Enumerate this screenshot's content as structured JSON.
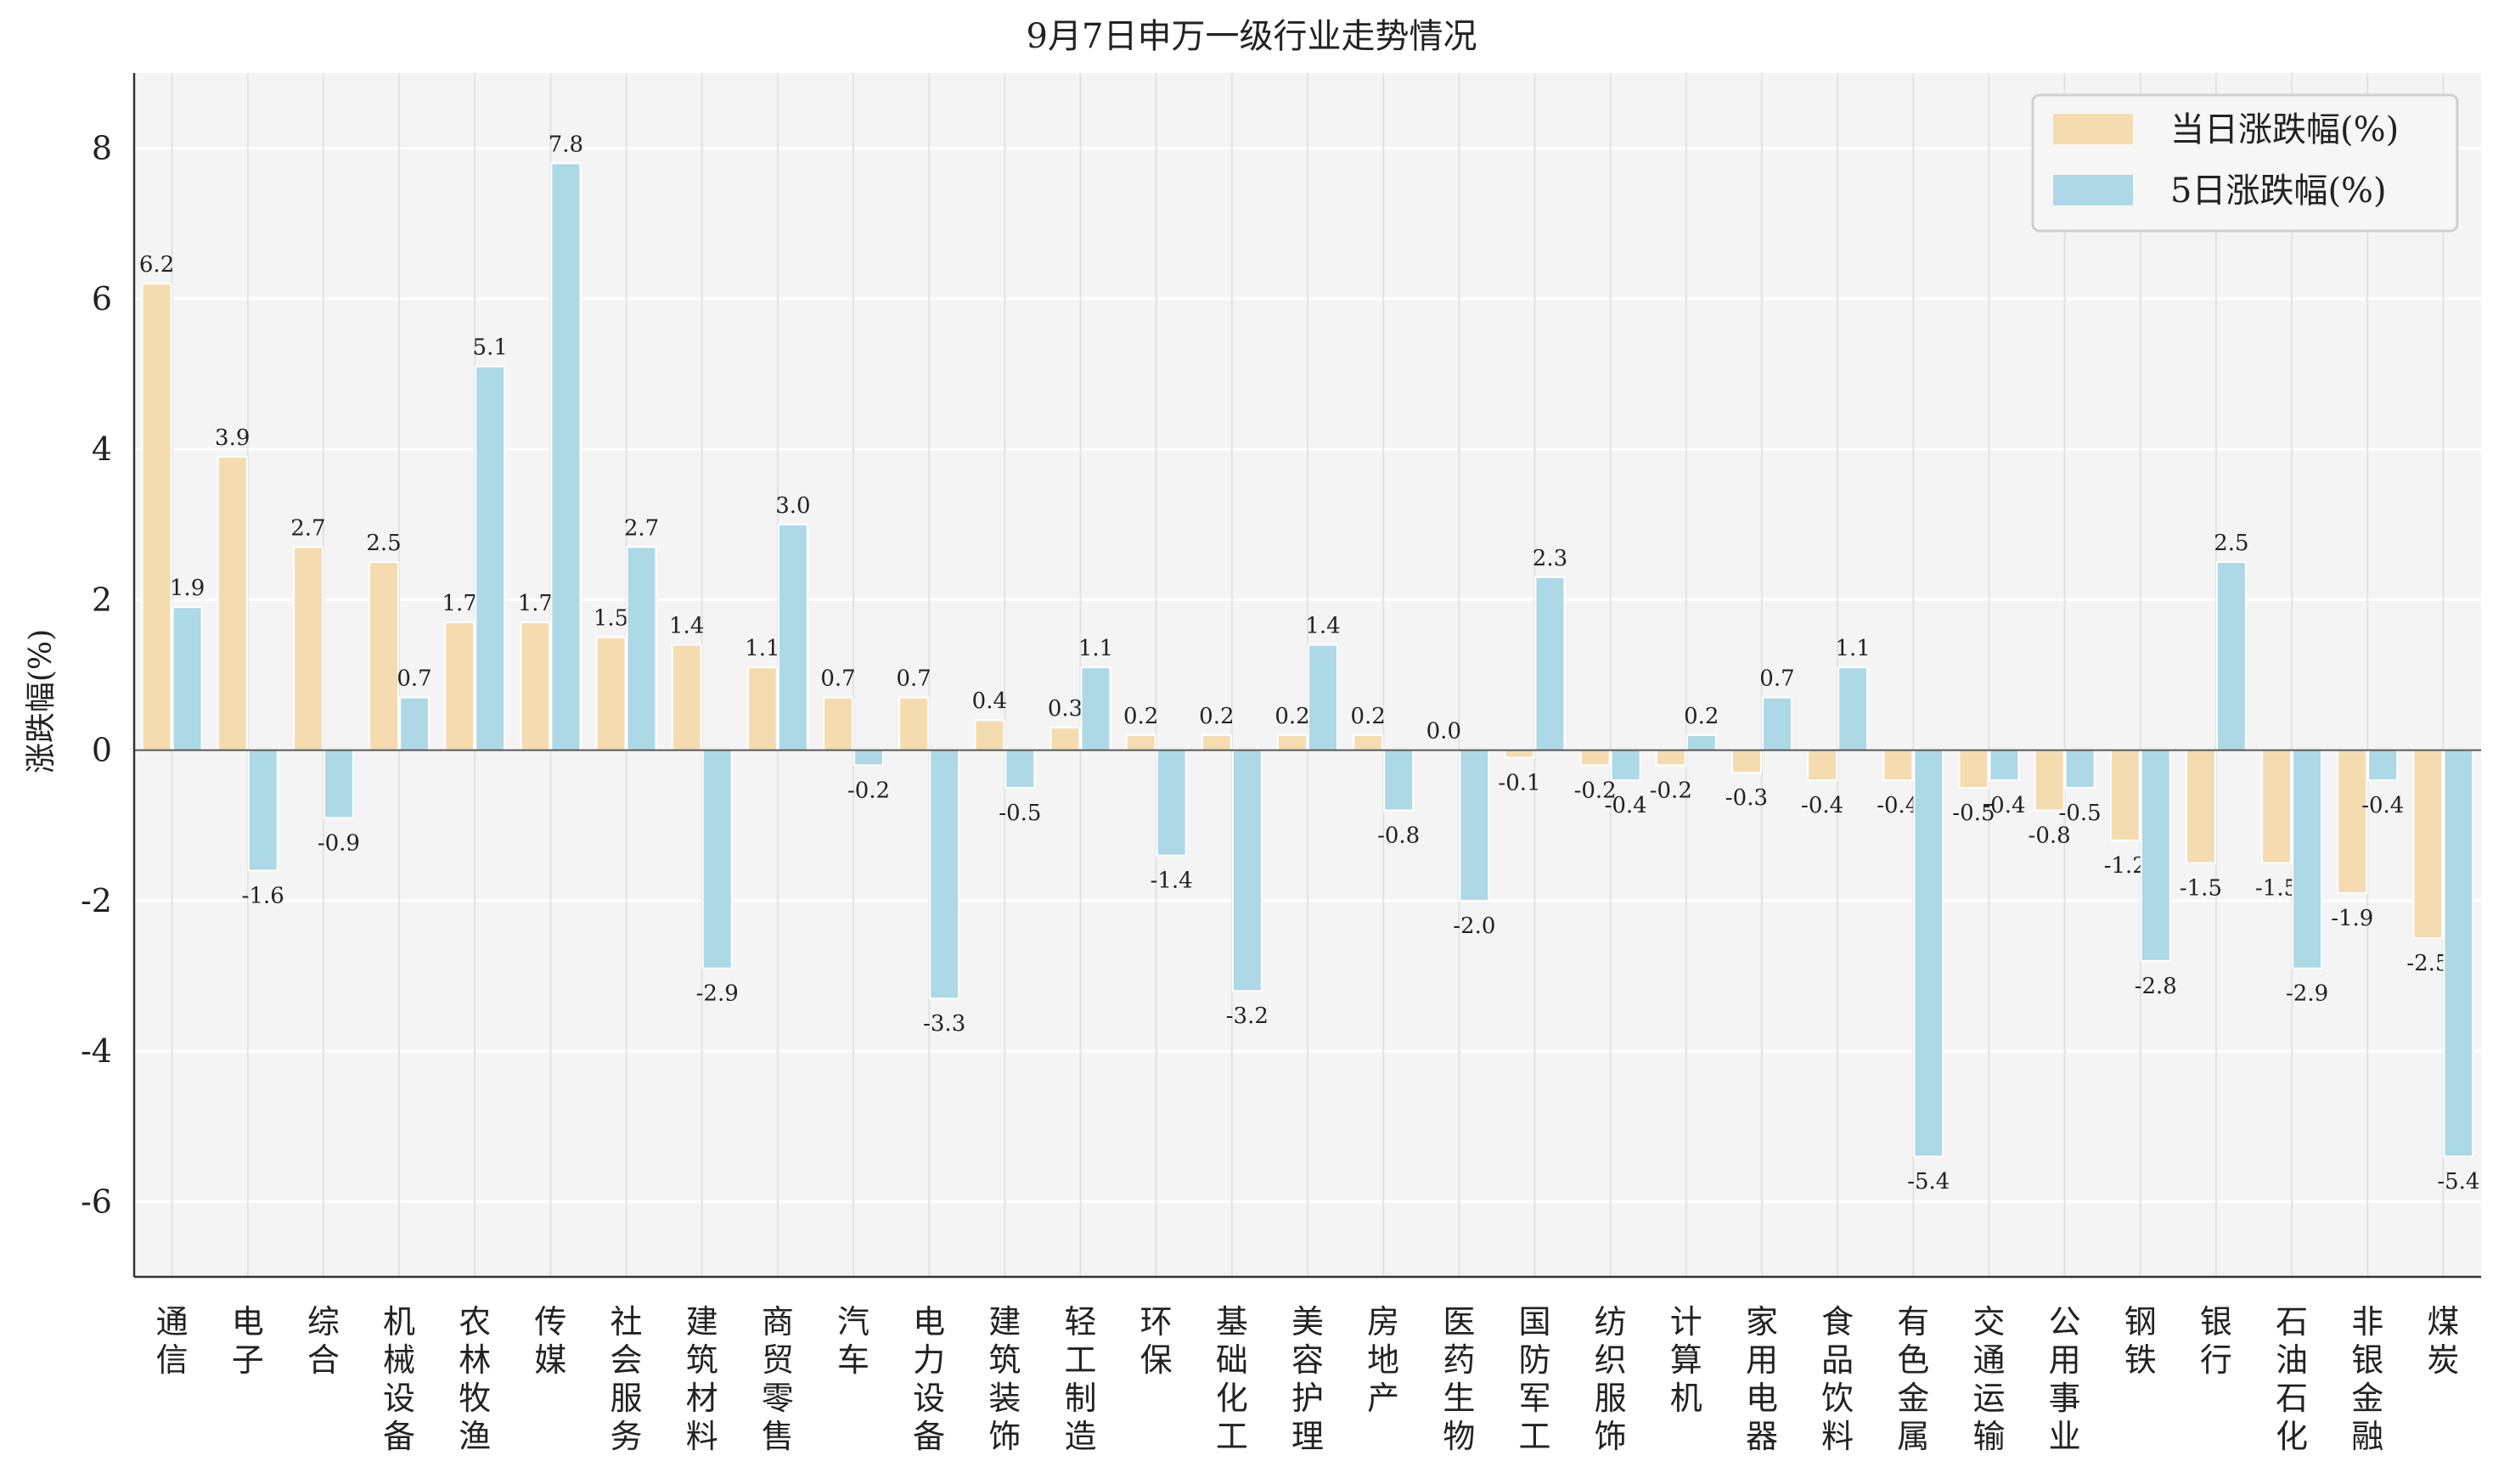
{
  "chart_data": {
    "type": "bar",
    "title": "9月7日申万一级行业走势情况",
    "xlabel": "",
    "ylabel": "涨跌幅(%)",
    "ylim": [
      -7,
      9
    ],
    "yticks": [
      -6,
      -4,
      -2,
      0,
      2,
      4,
      6,
      8
    ],
    "grid": true,
    "legend_position": "top-right",
    "categories": [
      "通信",
      "电子",
      "综合",
      "机械设备",
      "农林牧渔",
      "传媒",
      "社会服务",
      "建筑材料",
      "商贸零售",
      "汽车",
      "电力设备",
      "建筑装饰",
      "轻工制造",
      "环保",
      "基础化工",
      "美容护理",
      "房地产",
      "医药生物",
      "国防军工",
      "纺织服饰",
      "计算机",
      "家用电器",
      "食品饮料",
      "有色金属",
      "交通运输",
      "公用事业",
      "钢铁",
      "银行",
      "石油石化",
      "非银金融",
      "煤炭"
    ],
    "series": [
      {
        "name": "当日涨跌幅(%)",
        "color": "#f5dcb0",
        "values": [
          6.2,
          3.9,
          2.7,
          2.5,
          1.7,
          1.7,
          1.5,
          1.4,
          1.1,
          0.7,
          0.7,
          0.4,
          0.3,
          0.2,
          0.2,
          0.2,
          0.2,
          0.0,
          -0.1,
          -0.2,
          -0.2,
          -0.3,
          -0.4,
          -0.4,
          -0.5,
          -0.8,
          -1.2,
          -1.5,
          -1.5,
          -1.9,
          -2.5
        ],
        "labels": [
          "6.2",
          "3.9",
          "2.7",
          "2.5",
          "1.7",
          "1.7",
          "1.5",
          "1.4",
          "1.1",
          "0.7",
          "0.7",
          "0.4",
          "0.3",
          "0.2",
          "0.2",
          "0.2",
          "0.2",
          "0.0",
          "-0.1",
          "-0.2",
          "-0.2",
          "-0.3",
          "-0.4",
          "-0.4",
          "-0.5",
          "-0.8",
          "-1.2",
          "-1.5",
          "-1.5",
          "-1.9",
          "-2.5"
        ]
      },
      {
        "name": "5日涨跌幅(%)",
        "color": "#add8e6",
        "values": [
          1.9,
          -1.6,
          -0.9,
          0.7,
          5.1,
          7.8,
          2.7,
          -2.9,
          3.0,
          -0.2,
          -3.3,
          -0.5,
          1.1,
          -1.4,
          -3.2,
          1.4,
          -0.8,
          -2.0,
          2.3,
          -0.4,
          0.2,
          0.7,
          1.1,
          -5.4,
          -0.4,
          -0.5,
          -2.8,
          2.5,
          -2.9,
          -0.4,
          -5.4
        ],
        "labels": [
          "1.9",
          "-1.6",
          "-0.9",
          "0.7",
          "5.1",
          "7.8",
          "2.7",
          "-2.9",
          "3.0",
          "-0.2",
          "-3.3",
          "-0.5",
          "1.1",
          "-1.4",
          "-3.2",
          "1.4",
          "-0.8",
          "-2.0",
          "2.3",
          "-0.4",
          "0.2",
          "0.7",
          "1.1",
          "-5.4",
          "-0.4",
          "-0.5",
          "-2.8",
          "2.5",
          "-2.9",
          "-0.4",
          "-5.4"
        ]
      }
    ]
  }
}
